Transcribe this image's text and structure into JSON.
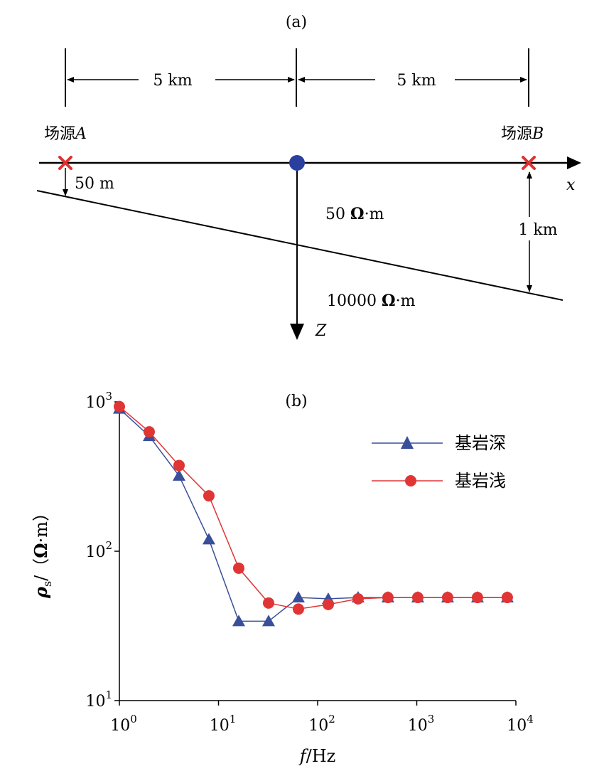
{
  "panel_a": {
    "label": "(a)",
    "dist_left": "5 km",
    "dist_right": "5 km",
    "source_a_prefix": "场源",
    "source_a_letter": "A",
    "source_b_prefix": "场源",
    "source_b_letter": "B",
    "depth_left": "50 m",
    "depth_right": "1 km",
    "axis_x": "x",
    "axis_z": "Z",
    "upper_res_value": "50",
    "upper_res_unit_symbol": "Ω",
    "upper_res_unit_rest": "·m",
    "lower_res_value": "10000",
    "lower_res_unit_symbol": "Ω",
    "lower_res_unit_rest": "·m",
    "colors": {
      "source_marker": "#e03030",
      "station_marker": "#2a3f9e",
      "line": "#000000"
    }
  },
  "chart_data": {
    "type": "line",
    "title": "(b)",
    "x_scale": "log",
    "y_scale": "log",
    "xlim": [
      1,
      10000
    ],
    "ylim": [
      10,
      1000
    ],
    "x_ticks": [
      {
        "value": 1,
        "base": "10",
        "exp": "0"
      },
      {
        "value": 10,
        "base": "10",
        "exp": "1"
      },
      {
        "value": 100,
        "base": "10",
        "exp": "2"
      },
      {
        "value": 1000,
        "base": "10",
        "exp": "3"
      },
      {
        "value": 10000,
        "base": "10",
        "exp": "4"
      }
    ],
    "y_ticks": [
      {
        "value": 10,
        "base": "10",
        "exp": "1"
      },
      {
        "value": 100,
        "base": "10",
        "exp": "2"
      },
      {
        "value": 1000,
        "base": "10",
        "exp": "3"
      }
    ],
    "xlabel_italic": "f",
    "xlabel_rest": "/Hz",
    "ylabel_symbol": "ρ",
    "ylabel_sub": "s",
    "ylabel_open": "/（",
    "ylabel_unit_symbol": "Ω",
    "ylabel_close": "·m）",
    "grid": false,
    "legend_position": "top-right",
    "series": [
      {
        "name": "基岩深",
        "color": "#3a4f9a",
        "marker": "triangle",
        "x": [
          1,
          2,
          4,
          8,
          16,
          32,
          64,
          128,
          256,
          512,
          1024,
          2048,
          4096,
          8192
        ],
        "y": [
          900,
          590,
          320,
          120,
          34,
          34,
          49,
          48,
          49,
          49,
          49,
          49,
          49,
          49
        ]
      },
      {
        "name": "基岩浅",
        "color": "#e03535",
        "marker": "circle",
        "x": [
          1,
          2,
          4,
          8,
          16,
          32,
          64,
          128,
          256,
          512,
          1024,
          2048,
          4096,
          8192
        ],
        "y": [
          930,
          630,
          375,
          235,
          77,
          45,
          41,
          44,
          48,
          49,
          49,
          49,
          49,
          49
        ]
      }
    ]
  }
}
